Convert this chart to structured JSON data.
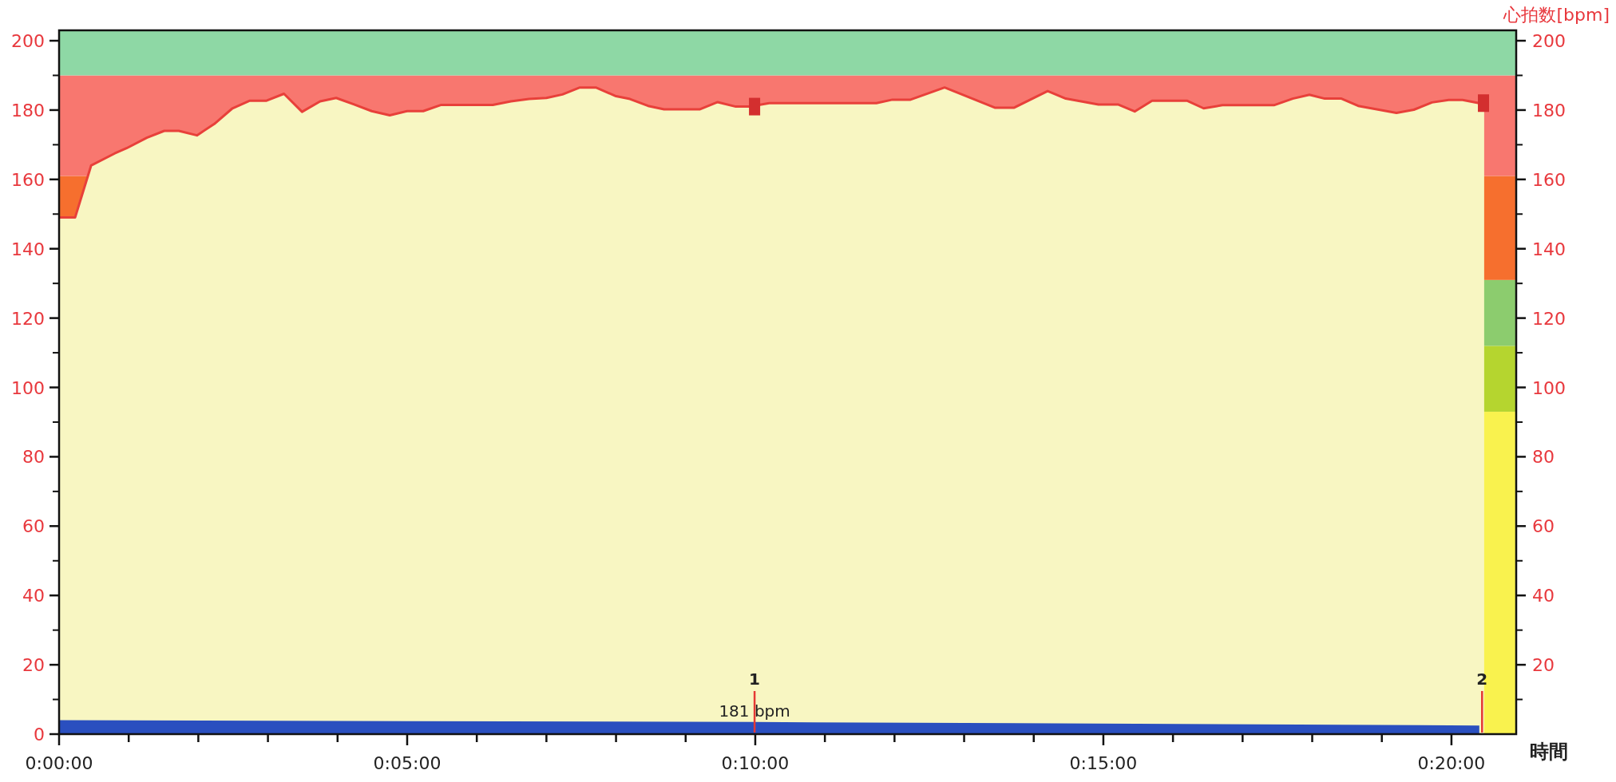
{
  "chart_data": {
    "type": "area",
    "xlabel": "時間",
    "y2label": "心拍数[bpm]",
    "xlim": [
      0,
      20.93
    ],
    "xticks": [
      {
        "value": 0,
        "label": "0:00:00"
      },
      {
        "value": 1,
        "label": null
      },
      {
        "value": 2,
        "label": null
      },
      {
        "value": 3,
        "label": null
      },
      {
        "value": 4,
        "label": null
      },
      {
        "value": 5,
        "label": "0:05:00"
      },
      {
        "value": 6,
        "label": null
      },
      {
        "value": 7,
        "label": null
      },
      {
        "value": 8,
        "label": null
      },
      {
        "value": 9,
        "label": null
      },
      {
        "value": 10,
        "label": "0:10:00"
      },
      {
        "value": 11,
        "label": null
      },
      {
        "value": 12,
        "label": null
      },
      {
        "value": 13,
        "label": null
      },
      {
        "value": 14,
        "label": null
      },
      {
        "value": 15,
        "label": "0:15:00"
      },
      {
        "value": 16,
        "label": null
      },
      {
        "value": 17,
        "label": null
      },
      {
        "value": 18,
        "label": null
      },
      {
        "value": 19,
        "label": null
      },
      {
        "value": 20,
        "label": "0:20:00"
      }
    ],
    "ylim": [
      0,
      203
    ],
    "yticks": [
      0,
      20,
      40,
      60,
      80,
      100,
      120,
      140,
      160,
      180,
      200
    ],
    "y2lim": [
      0,
      203
    ],
    "y2ticks": [
      20,
      40,
      60,
      80,
      100,
      120,
      140,
      160,
      180,
      200
    ],
    "bands": [
      {
        "axis": "y",
        "from": 0,
        "to": 93,
        "color": "#f9f24e"
      },
      {
        "axis": "y",
        "from": 93,
        "to": 112,
        "color": "#b5d52f"
      },
      {
        "axis": "y",
        "from": 112,
        "to": 131,
        "color": "#8ccc6e"
      },
      {
        "axis": "y",
        "from": 131,
        "to": 161,
        "color": "#f66f2e"
      },
      {
        "axis": "y",
        "from": 161,
        "to": 190,
        "color": "#f8776f"
      },
      {
        "axis": "y",
        "from": 190,
        "to": 203,
        "color": "#8ed8a5"
      }
    ],
    "series": [
      {
        "type": "line",
        "color": "#e8403a",
        "x": [
          0,
          0.23,
          0.46,
          0.8,
          0.97,
          1.26,
          1.51,
          1.72,
          1.98,
          2.23,
          2.49,
          2.74,
          2.98,
          3.23,
          3.49,
          3.75,
          3.98,
          4.23,
          4.49,
          4.75,
          5.0,
          5.23,
          5.49,
          5.72,
          6.23,
          6.49,
          6.75,
          7.0,
          7.23,
          7.48,
          7.71,
          8.0,
          8.2,
          8.46,
          8.69,
          9.2,
          9.46,
          9.72,
          9.92,
          10.2,
          11.74,
          11.97,
          12.23,
          12.72,
          13.44,
          13.72,
          14.2,
          14.46,
          14.93,
          15.21,
          15.45,
          15.7,
          16.2,
          16.44,
          16.71,
          17.45,
          17.72,
          17.96,
          18.18,
          18.42,
          18.66,
          19.21,
          19.46,
          19.72,
          19.96,
          20.16,
          20.47
        ],
        "values": [
          149,
          149,
          164,
          167.5,
          169,
          172,
          174,
          174,
          172.7,
          176,
          180.5,
          182.7,
          182.7,
          184.7,
          179.5,
          182.5,
          183.5,
          181.7,
          179.7,
          178.5,
          179.7,
          179.7,
          181.5,
          181.5,
          181.5,
          182.5,
          183.2,
          183.5,
          184.5,
          186.5,
          186.5,
          184,
          183.2,
          181.2,
          180.2,
          180.2,
          182.3,
          181,
          181,
          182,
          182,
          183,
          183,
          186.5,
          180.7,
          180.7,
          185.5,
          183.3,
          181.6,
          181.6,
          179.6,
          182.7,
          182.7,
          180.5,
          181.4,
          181.4,
          183.3,
          184.4,
          183.3,
          183.3,
          181.2,
          179.2,
          180.1,
          182.2,
          182.9,
          182.9,
          181.7
        ]
      },
      {
        "color": "#2a4fbf",
        "x": [
          0,
          10,
          20.4
        ],
        "values": [
          4,
          3.5,
          2.5
        ]
      },
      {
        "type": "scatter",
        "marker": "square",
        "color": "#d32f2f",
        "x": [
          9.99,
          20.46
        ],
        "values": [
          181,
          182
        ]
      }
    ],
    "annotations": [
      {
        "text": "1",
        "x": 9.99
      },
      {
        "text": "2",
        "x": 20.44
      },
      "181 bpm"
    ]
  }
}
